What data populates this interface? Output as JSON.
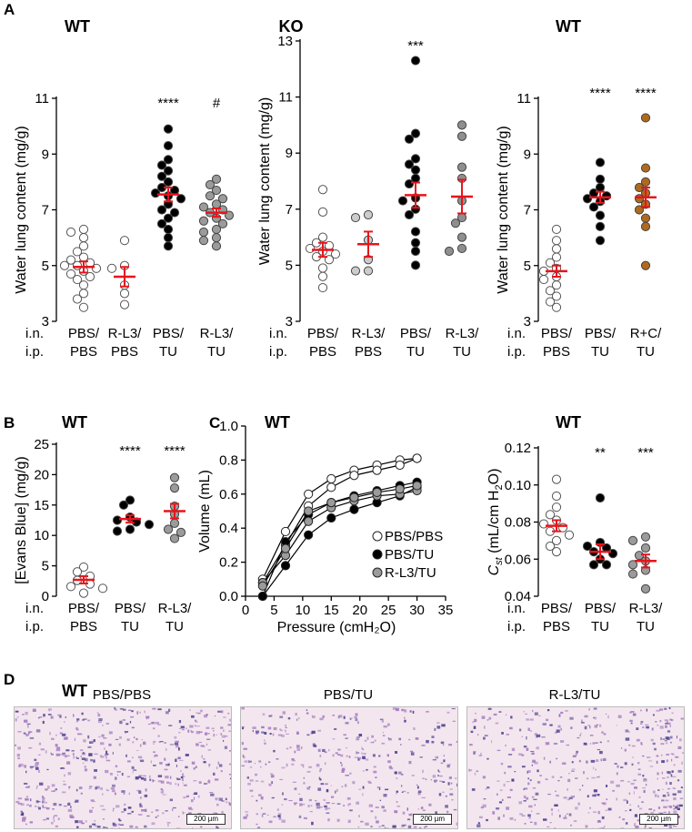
{
  "panel_labels": {
    "A": "A",
    "B": "B",
    "C": "C",
    "D": "D"
  },
  "chart_data": [
    {
      "id": "A1",
      "type": "scatter",
      "title": "WT",
      "ylabel": "Water lung content (mg/g)",
      "ylim": [
        3,
        11
      ],
      "yticks": [
        3,
        5,
        7,
        9,
        11
      ],
      "row_labels": [
        "i.n.",
        "i.p."
      ],
      "groups": [
        {
          "in": "PBS/",
          "ip": "PBS",
          "fill": "#ffffff",
          "mean": 4.95,
          "sem": 0.2,
          "sig": "",
          "values": [
            6.3,
            6.2,
            6.0,
            5.7,
            5.5,
            5.3,
            5.2,
            5.1,
            5.0,
            5.0,
            4.9,
            4.8,
            4.7,
            4.6,
            4.5,
            4.3,
            4.0,
            3.8,
            3.5
          ]
        },
        {
          "in": "R-L3/",
          "ip": "PBS",
          "fill": "#ffffff",
          "mean": 4.6,
          "sem": 0.35,
          "sig": "",
          "values": [
            5.9,
            5.0,
            4.9,
            4.3,
            4.0,
            3.6
          ]
        },
        {
          "in": "PBS/",
          "ip": "TU",
          "fill": "#000000",
          "mean": 7.55,
          "sem": 0.25,
          "sig": "****",
          "values": [
            9.9,
            9.3,
            8.8,
            8.6,
            8.4,
            8.2,
            8.0,
            7.8,
            7.7,
            7.6,
            7.5,
            7.4,
            7.2,
            7.0,
            6.9,
            6.7,
            6.5,
            6.3,
            6.0,
            5.7
          ]
        },
        {
          "in": "R-L3/",
          "ip": "TU",
          "fill": "#9b9b9b",
          "mean": 6.9,
          "sem": 0.15,
          "sig": "#",
          "values": [
            8.1,
            7.9,
            7.7,
            7.5,
            7.4,
            7.2,
            7.1,
            7.0,
            6.9,
            6.8,
            6.7,
            6.6,
            6.5,
            6.3,
            6.2,
            6.0,
            5.9,
            5.7
          ]
        }
      ]
    },
    {
      "id": "A2",
      "type": "scatter",
      "title": "KO",
      "ylabel": "Water lung content (mg/g)",
      "ylim": [
        3,
        13
      ],
      "yticks": [
        3,
        5,
        7,
        9,
        11,
        13
      ],
      "row_labels": [
        "i.n.",
        "i.p."
      ],
      "groups": [
        {
          "in": "PBS/",
          "ip": "PBS",
          "fill": "#ffffff",
          "mean": 5.55,
          "sem": 0.25,
          "sig": "",
          "values": [
            7.7,
            6.9,
            6.0,
            5.8,
            5.7,
            5.6,
            5.5,
            5.4,
            5.3,
            5.2,
            4.9,
            4.6,
            4.2
          ]
        },
        {
          "in": "R-L3/",
          "ip": "PBS",
          "fill": "#cccccc",
          "mean": 5.75,
          "sem": 0.45,
          "sig": "",
          "values": [
            6.8,
            6.7,
            5.9,
            5.2,
            4.8,
            4.8
          ]
        },
        {
          "in": "PBS/",
          "ip": "TU",
          "fill": "#000000",
          "mean": 7.5,
          "sem": 0.45,
          "sig": "***",
          "values": [
            12.3,
            9.7,
            9.5,
            8.8,
            8.6,
            8.4,
            8.1,
            7.9,
            7.4,
            7.3,
            7.0,
            6.8,
            6.2,
            5.8,
            5.5,
            5.0
          ]
        },
        {
          "in": "R-L3/",
          "ip": "TU",
          "fill": "#8f8f8f",
          "mean": 7.45,
          "sem": 0.6,
          "sig": "",
          "values": [
            10.0,
            9.6,
            8.5,
            8.1,
            7.3,
            6.7,
            6.5,
            6.0,
            5.6,
            5.5
          ]
        }
      ]
    },
    {
      "id": "A3",
      "type": "scatter",
      "title": "WT",
      "ylabel": "Water lung content (mg/g)",
      "ylim": [
        3,
        11
      ],
      "yticks": [
        3,
        5,
        7,
        9,
        11
      ],
      "row_labels": [
        "i.n.",
        "i.p."
      ],
      "groups": [
        {
          "in": "PBS/",
          "ip": "PBS",
          "fill": "#ffffff",
          "mean": 4.8,
          "sem": 0.2,
          "sig": "",
          "values": [
            6.3,
            5.9,
            5.6,
            5.3,
            5.1,
            4.9,
            4.8,
            4.6,
            4.5,
            4.3,
            4.1,
            3.9,
            3.7,
            3.5
          ]
        },
        {
          "in": "PBS/",
          "ip": "TU",
          "fill": "#000000",
          "mean": 7.45,
          "sem": 0.2,
          "sig": "****",
          "values": [
            8.7,
            8.1,
            7.8,
            7.6,
            7.5,
            7.4,
            7.3,
            7.1,
            6.8,
            6.4,
            5.9
          ]
        },
        {
          "in": "R+C/",
          "ip": "TU",
          "fill": "#b06a1e",
          "mean": 7.45,
          "sem": 0.35,
          "sig": "****",
          "values": [
            10.3,
            8.5,
            8.0,
            7.8,
            7.6,
            7.4,
            7.2,
            7.0,
            6.7,
            6.4,
            5.0
          ]
        }
      ]
    },
    {
      "id": "B",
      "type": "scatter",
      "title": "WT",
      "ylabel": "[Evans Blue] (mg/g)",
      "ylim": [
        0,
        25
      ],
      "yticks": [
        0,
        5,
        10,
        15,
        20,
        25
      ],
      "row_labels": [
        "i.n.",
        "i.p."
      ],
      "groups": [
        {
          "in": "PBS/",
          "ip": "PBS",
          "fill": "#ffffff",
          "mean": 2.7,
          "sem": 0.6,
          "sig": "",
          "values": [
            4.8,
            4.0,
            3.3,
            2.6,
            2.0,
            1.6,
            1.3,
            0.5
          ]
        },
        {
          "in": "PBS/",
          "ip": "TU",
          "fill": "#000000",
          "mean": 12.7,
          "sem": 0.6,
          "sig": "****",
          "values": [
            15.8,
            15.0,
            13.0,
            12.5,
            12.2,
            11.8,
            11.0,
            10.7
          ]
        },
        {
          "in": "R-L3/",
          "ip": "TU",
          "fill": "#9b9b9b",
          "mean": 14.0,
          "sem": 1.2,
          "sig": "****",
          "values": [
            19.5,
            17.8,
            14.8,
            13.5,
            12.0,
            11.0,
            10.5,
            9.5
          ]
        }
      ]
    },
    {
      "id": "C1",
      "type": "line",
      "title": "WT",
      "xlabel": "Pressure (cmH₂O)",
      "ylabel": "Volume (mL)",
      "xlim": [
        0,
        35
      ],
      "ylim": [
        0,
        1.0
      ],
      "xticks": [
        0,
        5,
        10,
        15,
        20,
        25,
        30,
        35
      ],
      "yticks": [
        0.0,
        0.2,
        0.4,
        0.6,
        0.8,
        1.0
      ],
      "series": [
        {
          "name": "PBS/PBS",
          "fill": "#ffffff",
          "inflation": {
            "x": [
              3,
              7,
              11,
              15,
              19,
              23,
              27,
              30
            ],
            "y": [
              0.1,
              0.38,
              0.6,
              0.69,
              0.74,
              0.77,
              0.8,
              0.81
            ]
          },
          "deflation": {
            "x": [
              30,
              27,
              23,
              19,
              15,
              11,
              7,
              3
            ],
            "y": [
              0.81,
              0.77,
              0.74,
              0.71,
              0.64,
              0.53,
              0.3,
              0.08
            ]
          }
        },
        {
          "name": "PBS/TU",
          "fill": "#000000",
          "inflation": {
            "x": [
              3,
              7,
              11,
              15,
              19,
              23,
              27,
              30
            ],
            "y": [
              0.0,
              0.18,
              0.36,
              0.46,
              0.51,
              0.55,
              0.59,
              0.64
            ]
          },
          "deflation": {
            "x": [
              30,
              27,
              23,
              19,
              15,
              11,
              7,
              3
            ],
            "y": [
              0.67,
              0.65,
              0.62,
              0.59,
              0.55,
              0.48,
              0.32,
              0.0
            ]
          }
        },
        {
          "name": "R-L3/TU",
          "fill": "#9b9b9b",
          "inflation": {
            "x": [
              3,
              7,
              11,
              15,
              19,
              23,
              27,
              30
            ],
            "y": [
              0.08,
              0.24,
              0.44,
              0.52,
              0.56,
              0.59,
              0.6,
              0.62
            ]
          },
          "deflation": {
            "x": [
              30,
              27,
              23,
              19,
              15,
              11,
              7,
              3
            ],
            "y": [
              0.65,
              0.63,
              0.61,
              0.58,
              0.55,
              0.5,
              0.28,
              0.06
            ]
          }
        }
      ]
    },
    {
      "id": "C2",
      "type": "scatter",
      "title": "WT",
      "ylabel_base": "C",
      "ylabel_sub": "st",
      "ylabel_rest": " (mL/cm H",
      "ylabel_sub2": "2",
      "ylabel_end": "O)",
      "ylim": [
        0.04,
        0.12
      ],
      "yticks": [
        0.04,
        0.06,
        0.08,
        0.1,
        0.12
      ],
      "row_labels": [
        "i.n.",
        "i.p."
      ],
      "groups": [
        {
          "in": "PBS/",
          "ip": "PBS",
          "fill": "#ffffff",
          "mean": 0.078,
          "sem": 0.003,
          "sig": "",
          "values": [
            0.103,
            0.094,
            0.088,
            0.084,
            0.081,
            0.079,
            0.077,
            0.075,
            0.073,
            0.07,
            0.067,
            0.064
          ]
        },
        {
          "in": "PBS/",
          "ip": "TU",
          "fill": "#000000",
          "mean": 0.064,
          "sem": 0.004,
          "sig": "**",
          "values": [
            0.093,
            0.069,
            0.067,
            0.066,
            0.064,
            0.063,
            0.06,
            0.057,
            0.057
          ]
        },
        {
          "in": "R-L3/",
          "ip": "TU",
          "fill": "#9b9b9b",
          "mean": 0.059,
          "sem": 0.0035,
          "sig": "***",
          "values": [
            0.072,
            0.07,
            0.066,
            0.062,
            0.059,
            0.057,
            0.054,
            0.052,
            0.044
          ]
        }
      ]
    }
  ],
  "histology": {
    "title": "WT",
    "images": [
      {
        "label": "PBS/PBS",
        "scale": "200 µm"
      },
      {
        "label": "PBS/TU",
        "scale": "200 µm"
      },
      {
        "label": "R-L3/TU",
        "scale": "200 µm"
      }
    ]
  },
  "colors": {
    "mean_bar": "#e8141b",
    "axis": "#000000",
    "tissue_bg": "#f4e6ee",
    "nuclei": "#4b3f8f",
    "stroma": "#a27cc0"
  }
}
